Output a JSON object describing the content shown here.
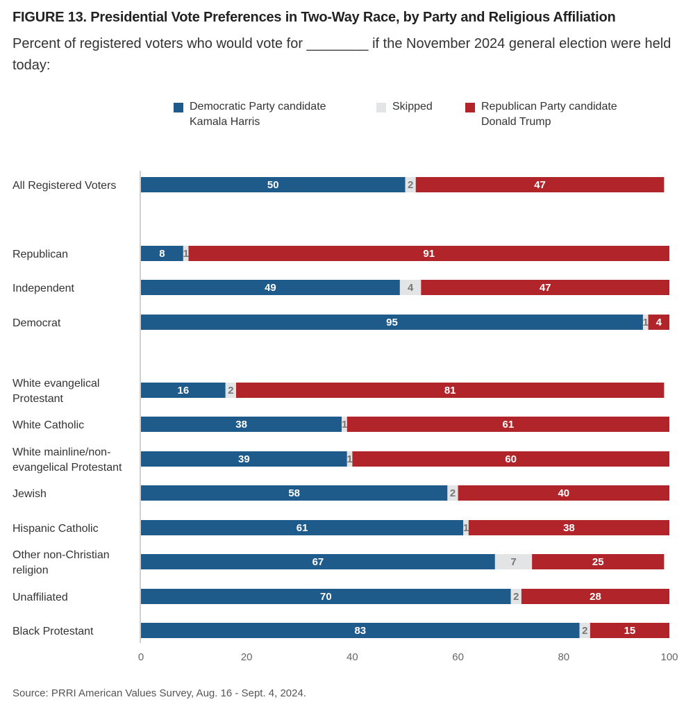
{
  "header": {
    "title": "FIGURE 13.  Presidential Vote Preferences in Two-Way Race, by Party and Religious Affiliation",
    "subtitle": "Percent of registered voters who would vote for ________ if the November 2024 general election were held today:"
  },
  "legend": {
    "items": [
      {
        "lines": [
          "Democratic Party candidate",
          "Kamala Harris"
        ],
        "color": "#1f5b8a"
      },
      {
        "lines": [
          "Skipped"
        ],
        "color": "#e3e4e6"
      },
      {
        "lines": [
          "Republican Party candidate",
          "Donald Trump"
        ],
        "color": "#b0242a"
      }
    ]
  },
  "chart_data": {
    "type": "bar",
    "orientation": "horizontal",
    "stacked": true,
    "categories": [
      [
        "All Registered Voters"
      ],
      [
        "Republican"
      ],
      [
        "Independent"
      ],
      [
        "Democrat"
      ],
      [
        "White evangelical",
        "Protestant"
      ],
      [
        "White Catholic"
      ],
      [
        "White mainline/non-",
        "evangelical Protestant"
      ],
      [
        "Jewish"
      ],
      [
        "Hispanic Catholic"
      ],
      [
        "Other non-Christian",
        "religion"
      ],
      [
        "Unaffiliated"
      ],
      [
        "Black Protestant"
      ]
    ],
    "series": [
      {
        "name": "Democratic Party candidate Kamala Harris",
        "color": "#1f5b8a",
        "label_color": "#ffffff",
        "values": [
          50,
          8,
          49,
          95,
          16,
          38,
          39,
          58,
          61,
          67,
          70,
          83
        ]
      },
      {
        "name": "Skipped",
        "color": "#e3e4e6",
        "label_color": "#777777",
        "values": [
          2,
          1,
          4,
          1,
          2,
          1,
          1,
          2,
          1,
          7,
          2,
          2
        ]
      },
      {
        "name": "Republican Party candidate Donald Trump",
        "color": "#b0242a",
        "label_color": "#ffffff",
        "values": [
          47,
          91,
          47,
          4,
          81,
          61,
          60,
          40,
          38,
          25,
          28,
          15
        ]
      }
    ],
    "xlim": [
      0,
      100
    ],
    "xticks": [
      "0",
      "20",
      "40",
      "60",
      "80",
      "100"
    ],
    "xlabel": "",
    "ylabel": "",
    "grid": false,
    "legend_position": "top"
  },
  "footer": {
    "source": "Source: PRRI American Values Survey, Aug. 16 - Sept. 4, 2024."
  }
}
